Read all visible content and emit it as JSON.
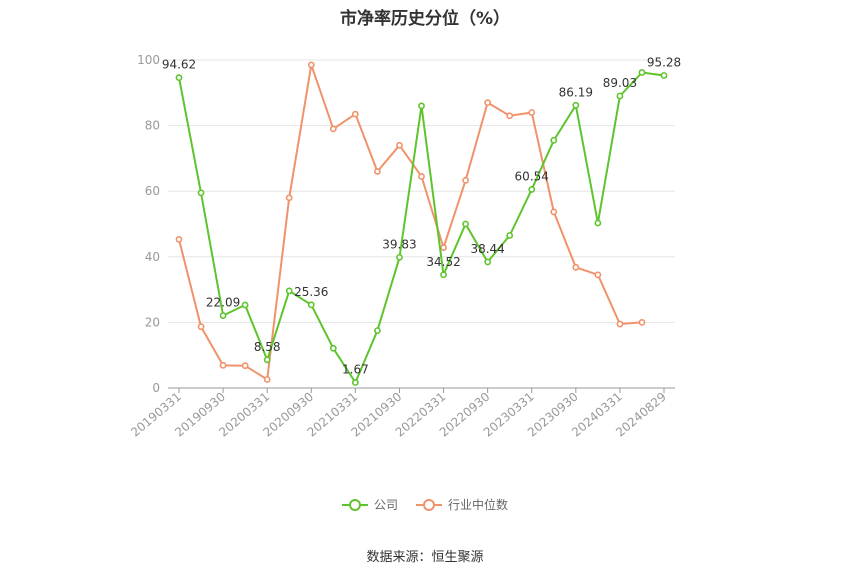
{
  "title": "市净率历史分位（%）",
  "source": "数据来源：恒生聚源",
  "colors": {
    "company": "#5ec42d",
    "industry": "#f0926a",
    "grid": "#e6e6e6",
    "axis": "#999999",
    "tick_text": "#999999",
    "label_text": "#333333"
  },
  "chart_data": {
    "type": "line",
    "title": "市净率历史分位（%）",
    "xlabel": "",
    "ylabel": "",
    "ylim": [
      0,
      100
    ],
    "yticks": [
      0,
      20,
      40,
      60,
      80,
      100
    ],
    "grid": true,
    "legend_position": "bottom",
    "x": [
      "20190331",
      "20190630",
      "20190930",
      "20191231",
      "20200331",
      "20200630",
      "20200930",
      "20201231",
      "20210331",
      "20210630",
      "20210930",
      "20211231",
      "20220331",
      "20220630",
      "20220930",
      "20221231",
      "20230331",
      "20230630",
      "20230930",
      "20231231",
      "20240331",
      "20240630",
      "20240829"
    ],
    "x_tick_labels": [
      "20190331",
      "20190930",
      "20200331",
      "20200930",
      "20210331",
      "20210930",
      "20220331",
      "20220930",
      "20230331",
      "20230930",
      "20240331",
      "20240829"
    ],
    "series": [
      {
        "name": "公司",
        "values": [
          94.62,
          59.5,
          22.09,
          25.3,
          8.58,
          29.6,
          25.36,
          12.1,
          1.67,
          17.5,
          39.83,
          86.0,
          34.52,
          50.0,
          38.44,
          46.5,
          60.54,
          75.5,
          86.19,
          50.3,
          89.03,
          96.2,
          95.28
        ]
      },
      {
        "name": "行业中位数",
        "values": [
          45.3,
          18.7,
          6.9,
          6.8,
          2.6,
          58.0,
          98.5,
          79.0,
          83.5,
          66.0,
          74.0,
          64.5,
          42.8,
          63.3,
          87.0,
          83.0,
          84.0,
          53.7,
          36.8,
          34.5,
          19.5,
          20.0,
          null
        ]
      }
    ],
    "annotations": [
      {
        "series": "公司",
        "x": "20190331",
        "text": "94.62"
      },
      {
        "series": "公司",
        "x": "20190930",
        "text": "22.09"
      },
      {
        "series": "公司",
        "x": "20200331",
        "text": "8.58"
      },
      {
        "series": "公司",
        "x": "20200930",
        "text": "25.36"
      },
      {
        "series": "公司",
        "x": "20210331",
        "text": "1.67"
      },
      {
        "series": "公司",
        "x": "20210930",
        "text": "39.83"
      },
      {
        "series": "公司",
        "x": "20220331",
        "text": "34.52"
      },
      {
        "series": "公司",
        "x": "20220930",
        "text": "38.44"
      },
      {
        "series": "公司",
        "x": "20230331",
        "text": "60.54"
      },
      {
        "series": "公司",
        "x": "20230930",
        "text": "86.19"
      },
      {
        "series": "公司",
        "x": "20240331",
        "text": "89.03"
      },
      {
        "series": "公司",
        "x": "20240829",
        "text": "95.28"
      }
    ]
  }
}
